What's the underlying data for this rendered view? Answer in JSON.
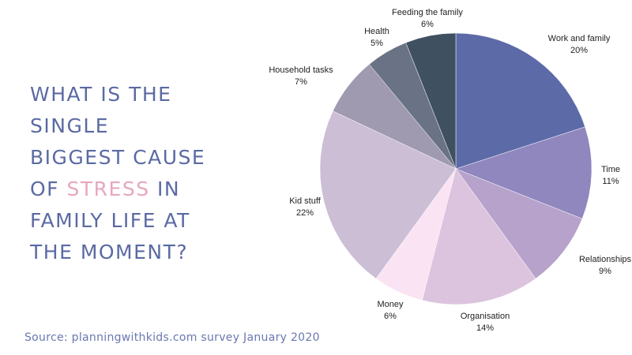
{
  "question": {
    "line1": "WHAT IS THE",
    "line2": "SINGLE",
    "line3": "BIGGEST CAUSE",
    "line4_pre": "OF ",
    "line4_accent": "STRESS",
    "line4_post": " IN",
    "line5": "FAMILY LIFE AT",
    "line6": "THE MOMENT?"
  },
  "source": "Source: planningwithkids.com survey January 2020",
  "chart_data": {
    "type": "pie",
    "title": "",
    "slices": [
      {
        "label": "Work and family",
        "value": 20,
        "pct": "20%",
        "color": "#5d6aa8"
      },
      {
        "label": "Time",
        "value": 11,
        "pct": "11%",
        "color": "#8f87bd"
      },
      {
        "label": "Relationships",
        "value": 9,
        "pct": "9%",
        "color": "#b6a2cb"
      },
      {
        "label": "Organisation",
        "value": 14,
        "pct": "14%",
        "color": "#dcc4df"
      },
      {
        "label": "Money",
        "value": 6,
        "pct": "6%",
        "color": "#fae3f3"
      },
      {
        "label": "Kid stuff",
        "value": 22,
        "pct": "22%",
        "color": "#cbbed5"
      },
      {
        "label": "Household tasks",
        "value": 7,
        "pct": "7%",
        "color": "#9f9aaf"
      },
      {
        "label": "Health",
        "value": 5,
        "pct": "5%",
        "color": "#6a7285"
      },
      {
        "label": "Feeding the family",
        "value": 6,
        "pct": "6%",
        "color": "#3f5060"
      }
    ],
    "start": "12 o'clock",
    "direction": "clockwise",
    "legend": "none"
  }
}
